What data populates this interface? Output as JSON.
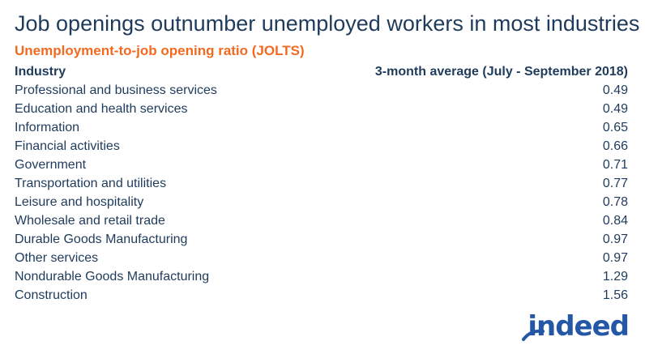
{
  "colors": {
    "title": "#1f3b5c",
    "accent": "#f26a21",
    "logo": "#2557a7"
  },
  "chart_data": {
    "type": "table",
    "title": "Job openings outnumber unemployed workers in most industries",
    "subtitle": "Unemployment-to-job opening ratio (JOLTS)",
    "columns": [
      "Industry",
      "3-month average (July - September 2018)"
    ],
    "rows": [
      {
        "industry": "Professional and business services",
        "value": "0.49"
      },
      {
        "industry": "Education and health services",
        "value": "0.49"
      },
      {
        "industry": "Information",
        "value": "0.65"
      },
      {
        "industry": "Financial activities",
        "value": "0.66"
      },
      {
        "industry": "Government",
        "value": "0.71"
      },
      {
        "industry": "Transportation and utilities",
        "value": "0.77"
      },
      {
        "industry": "Leisure and hospitality",
        "value": "0.78"
      },
      {
        "industry": "Wholesale and retail trade",
        "value": "0.84"
      },
      {
        "industry": "Durable Goods Manufacturing",
        "value": "0.97"
      },
      {
        "industry": "Other services",
        "value": "0.97"
      },
      {
        "industry": "Nondurable Goods Manufacturing",
        "value": "1.29"
      },
      {
        "industry": "Construction",
        "value": "1.56"
      }
    ]
  },
  "logo": {
    "text": "indeed",
    "icon": "indeed-logo-arc-icon"
  }
}
